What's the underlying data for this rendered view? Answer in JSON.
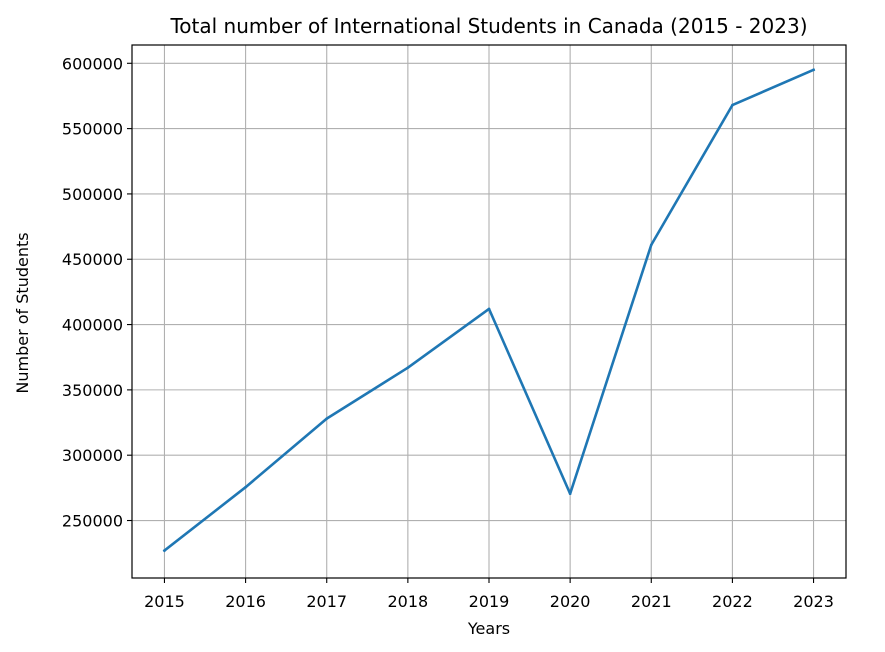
{
  "chart_data": {
    "type": "line",
    "title": "Total number of International Students in Canada (2015 - 2023)",
    "xlabel": "Years",
    "ylabel": "Number of Students",
    "grid": true,
    "x": [
      "2015",
      "2016",
      "2017",
      "2018",
      "2019",
      "2020",
      "2021",
      "2022",
      "2023"
    ],
    "series": [
      {
        "color": "#1f77b4",
        "values": [
          227000,
          275500,
          328000,
          367000,
          412000,
          270500,
          461000,
          568000,
          595000
        ]
      }
    ],
    "xlim": [
      2014.6,
      2023.4
    ],
    "ylim": [
      206000,
      614000
    ],
    "yticks": [
      250000,
      300000,
      350000,
      400000,
      450000,
      500000,
      550000,
      600000
    ],
    "ytick_labels": [
      "250000",
      "300000",
      "350000",
      "400000",
      "450000",
      "500000",
      "550000",
      "600000"
    ]
  }
}
